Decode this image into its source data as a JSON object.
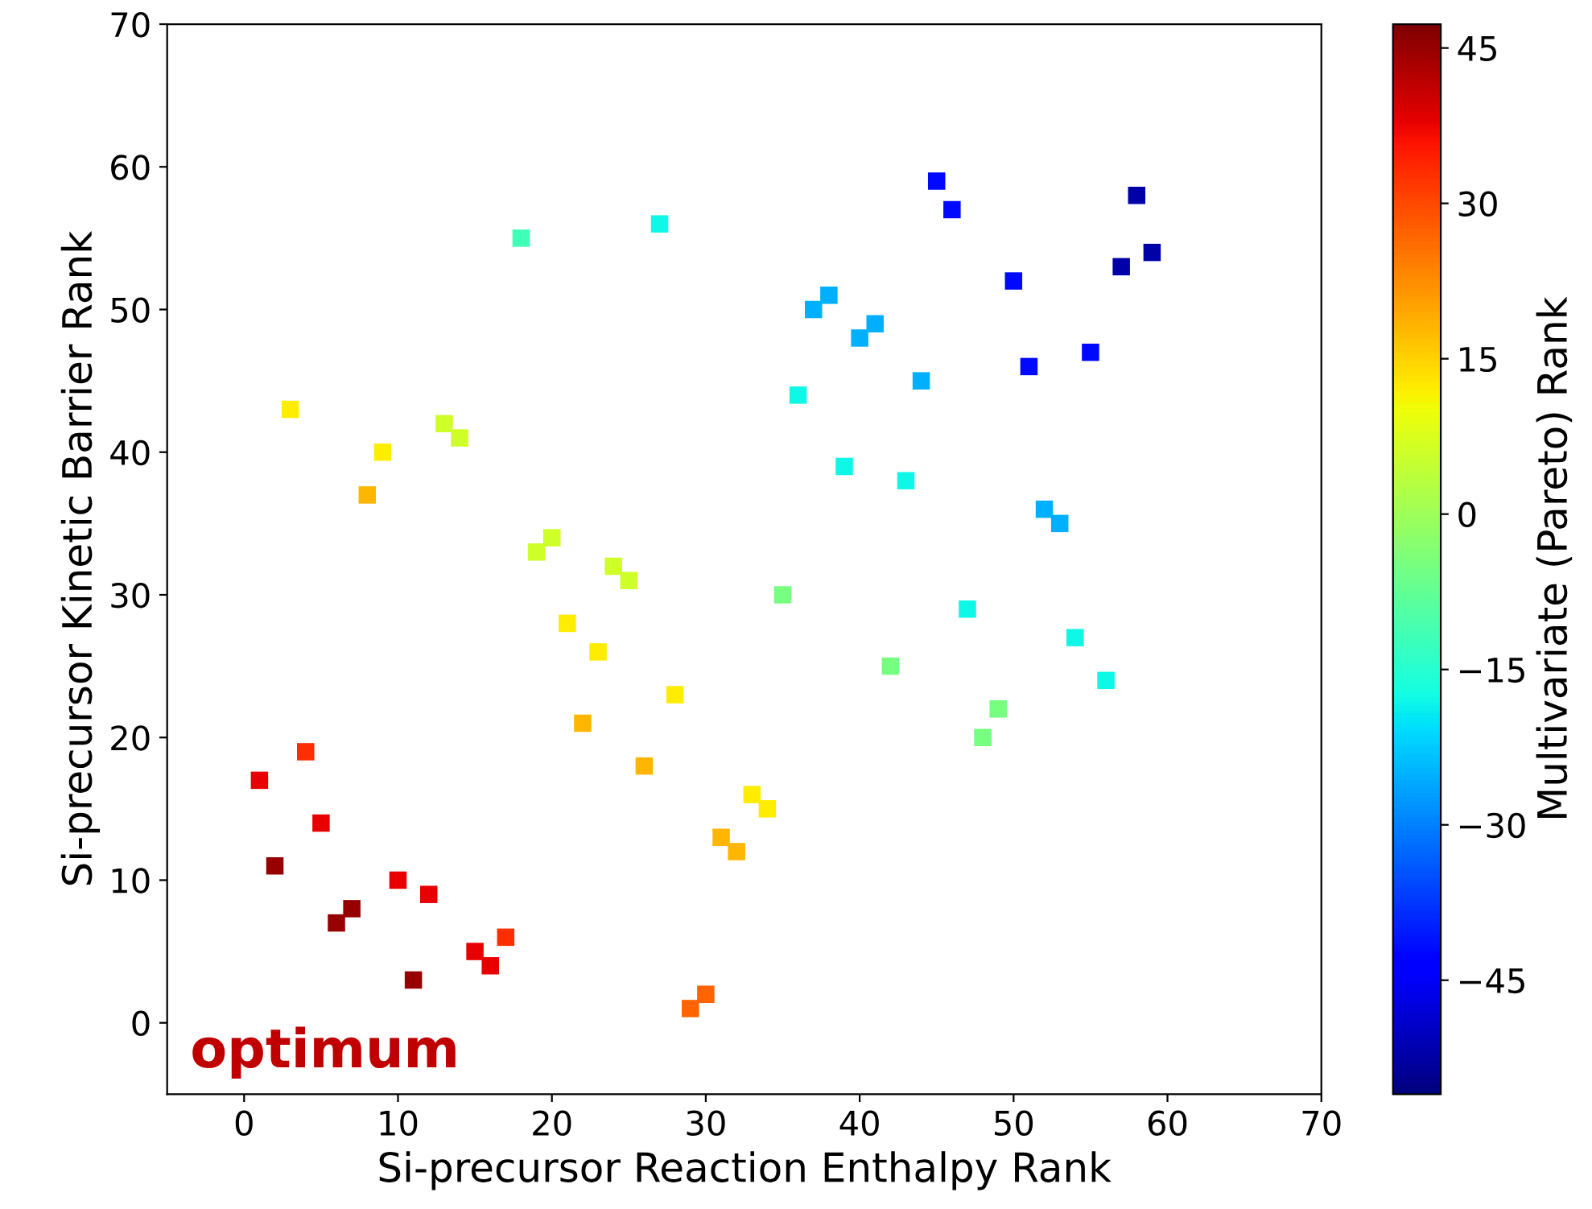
{
  "chart_data": {
    "type": "scatter",
    "xlabel": "Si-precursor Reaction Enthalpy Rank",
    "ylabel": "Si-precursor Kinetic Barrier Rank",
    "clabel": "Multivariate (Pareto) Rank",
    "x": [
      2,
      6,
      7,
      11,
      1,
      5,
      10,
      12,
      15,
      16,
      4,
      17,
      29,
      30,
      22,
      26,
      31,
      32,
      8,
      3,
      9,
      21,
      23,
      28,
      33,
      34,
      13,
      14,
      19,
      20,
      24,
      25,
      35,
      42,
      48,
      49,
      18,
      39,
      43,
      47,
      54,
      56,
      27,
      36,
      37,
      38,
      40,
      41,
      44,
      52,
      53,
      45,
      46,
      50,
      51,
      55,
      57,
      58,
      59
    ],
    "values": [
      11,
      7,
      8,
      3,
      17,
      14,
      10,
      9,
      5,
      4,
      19,
      6,
      1,
      2,
      21,
      18,
      13,
      12,
      37,
      43,
      40,
      28,
      26,
      23,
      16,
      15,
      42,
      41,
      33,
      34,
      32,
      31,
      30,
      25,
      20,
      22,
      55,
      39,
      38,
      29,
      27,
      24,
      56,
      44,
      50,
      51,
      48,
      49,
      45,
      36,
      35,
      59,
      57,
      52,
      46,
      47,
      53,
      58,
      54
    ],
    "cvalues": [
      45,
      45,
      45,
      45,
      38,
      38,
      38,
      38,
      38,
      38,
      33,
      33,
      27,
      27,
      18,
      18,
      18,
      18,
      18,
      12,
      12,
      12,
      12,
      12,
      12,
      12,
      6,
      6,
      6,
      6,
      6,
      6,
      -5,
      -5,
      -5,
      -5,
      -12,
      -18,
      -18,
      -18,
      -18,
      -18,
      -18,
      -18,
      -25,
      -25,
      -25,
      -25,
      -25,
      -25,
      -25,
      -42,
      -42,
      -42,
      -42,
      -42,
      -52,
      -52,
      -52
    ],
    "clim": [
      -56,
      47.3
    ],
    "cticks": [
      -45,
      -30,
      -15,
      0,
      15,
      30,
      45
    ],
    "marker": "square",
    "xlim": [
      -5,
      70
    ],
    "xticks": [
      0,
      10,
      20,
      30,
      40,
      50,
      60,
      70
    ],
    "ylim": [
      -5,
      70
    ],
    "yticks": [
      0,
      10,
      20,
      30,
      40,
      50,
      60,
      70
    ],
    "grid": false,
    "annotations": [
      "optimum"
    ]
  }
}
